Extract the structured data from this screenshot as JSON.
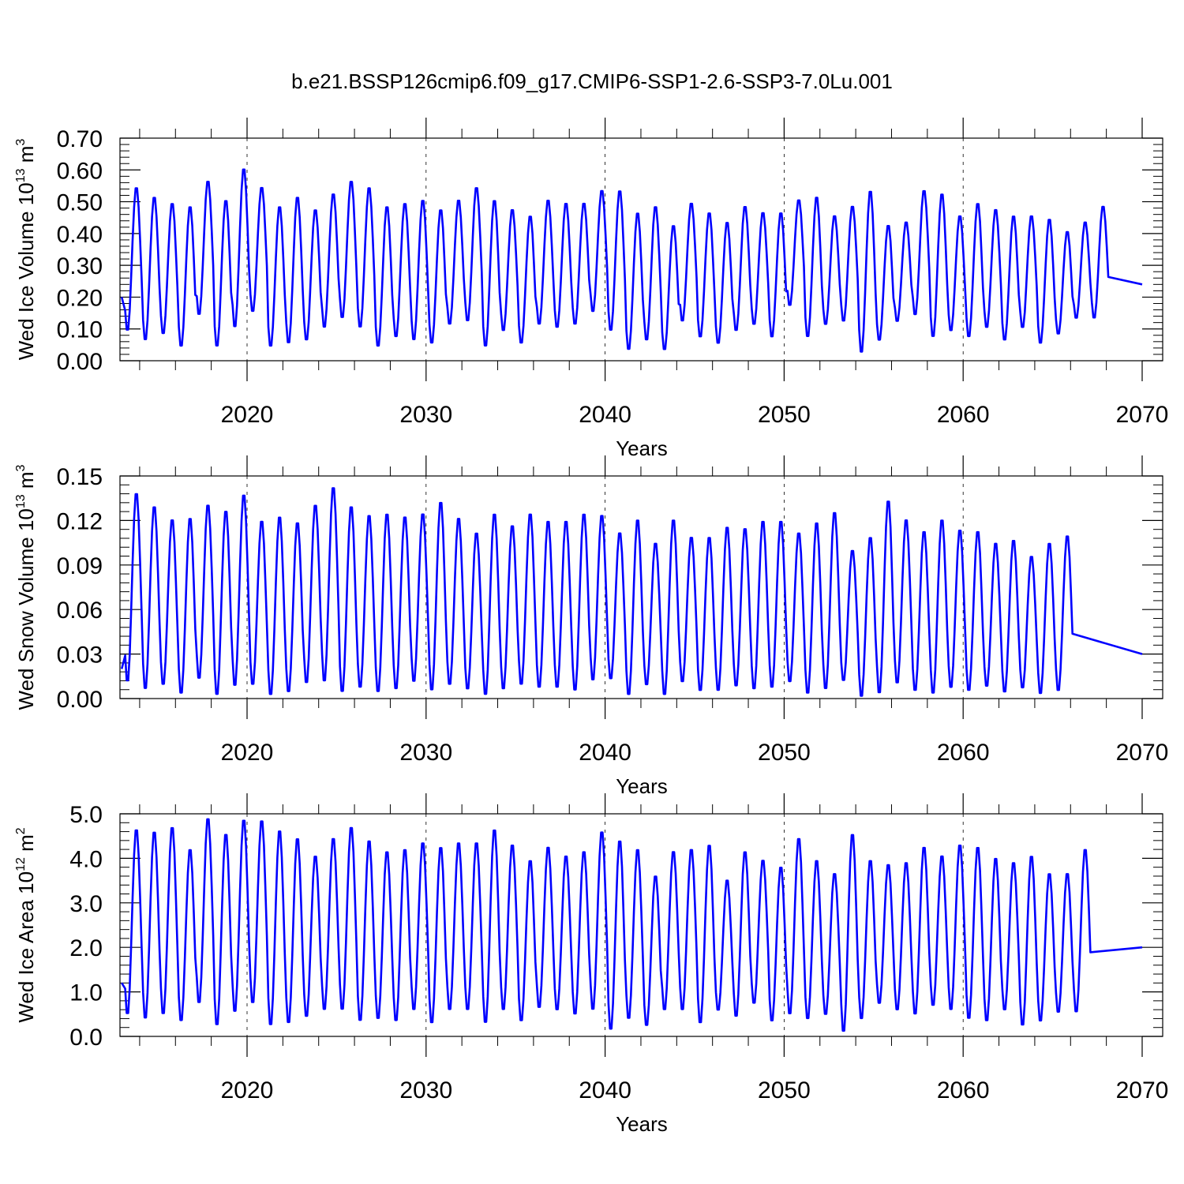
{
  "title": "b.e21.BSSP126cmip6.f09_g17.CMIP6-SSP1-2.6-SSP3-7.0Lu.001",
  "chart_data": [
    {
      "type": "line",
      "ylabel": {
        "base": "Wed Ice Volume 10",
        "exp": "13",
        "unit": " m",
        "unit_exp": "3"
      },
      "xlabel": "Years",
      "xlim": [
        2013,
        2070
      ],
      "ylim": [
        0.0,
        0.7
      ],
      "yticks": [
        "0.00",
        "0.10",
        "0.20",
        "0.30",
        "0.40",
        "0.50",
        "0.60",
        "0.70"
      ],
      "ytick_values": [
        0,
        0.1,
        0.2,
        0.3,
        0.4,
        0.5,
        0.6,
        0.7
      ],
      "xticks": [
        "2020",
        "2030",
        "2040",
        "2050",
        "2060",
        "2070"
      ],
      "xtick_values": [
        2020,
        2030,
        2040,
        2050,
        2060,
        2070
      ],
      "grid": "dashed vertical at decades",
      "line_color": "#0000ff",
      "start_value": 0.2,
      "end_value": 0.24,
      "annual_maxima": [
        0.55,
        0.52,
        0.5,
        0.49,
        0.57,
        0.51,
        0.61,
        0.55,
        0.49,
        0.52,
        0.48,
        0.53,
        0.57,
        0.55,
        0.49,
        0.5,
        0.51,
        0.48,
        0.51,
        0.55,
        0.51,
        0.48,
        0.46,
        0.51,
        0.5,
        0.5,
        0.54,
        0.54,
        0.47,
        0.49,
        0.43,
        0.5,
        0.47,
        0.44,
        0.49,
        0.47,
        0.47,
        0.51,
        0.52,
        0.46,
        0.49,
        0.54,
        0.43,
        0.44,
        0.54,
        0.53,
        0.46,
        0.5,
        0.48,
        0.46,
        0.46,
        0.45,
        0.41,
        0.44,
        0.49
      ],
      "annual_minima": [
        0.09,
        0.06,
        0.08,
        0.04,
        0.14,
        0.04,
        0.1,
        0.15,
        0.04,
        0.05,
        0.06,
        0.1,
        0.13,
        0.1,
        0.04,
        0.07,
        0.06,
        0.05,
        0.11,
        0.12,
        0.04,
        0.09,
        0.05,
        0.11,
        0.1,
        0.11,
        0.15,
        0.09,
        0.03,
        0.06,
        0.03,
        0.12,
        0.07,
        0.05,
        0.09,
        0.11,
        0.07,
        0.17,
        0.07,
        0.11,
        0.12,
        0.02,
        0.06,
        0.12,
        0.14,
        0.07,
        0.09,
        0.07,
        0.1,
        0.06,
        0.1,
        0.05,
        0.08,
        0.13
      ]
    },
    {
      "type": "line",
      "ylabel": {
        "base": "Wed Snow Volume 10",
        "exp": "13",
        "unit": " m",
        "unit_exp": "3"
      },
      "xlabel": "Years",
      "xlim": [
        2013,
        2070
      ],
      "ylim": [
        0.0,
        0.15
      ],
      "yticks": [
        "0.00",
        "0.03",
        "0.06",
        "0.09",
        "0.12",
        "0.15"
      ],
      "ytick_values": [
        0,
        0.03,
        0.06,
        0.09,
        0.12,
        0.15
      ],
      "xticks": [
        "2020",
        "2030",
        "2040",
        "2050",
        "2060",
        "2070"
      ],
      "xtick_values": [
        2020,
        2030,
        2040,
        2050,
        2060,
        2070
      ],
      "grid": "dashed vertical at decades",
      "line_color": "#0000ff",
      "start_value": 0.02,
      "end_value": 0.03,
      "annual_maxima": [
        0.14,
        0.131,
        0.122,
        0.123,
        0.132,
        0.128,
        0.139,
        0.121,
        0.124,
        0.12,
        0.132,
        0.144,
        0.131,
        0.125,
        0.126,
        0.124,
        0.126,
        0.134,
        0.123,
        0.113,
        0.126,
        0.118,
        0.126,
        0.121,
        0.121,
        0.126,
        0.125,
        0.113,
        0.122,
        0.106,
        0.122,
        0.11,
        0.11,
        0.117,
        0.116,
        0.121,
        0.121,
        0.113,
        0.12,
        0.127,
        0.101,
        0.11,
        0.135,
        0.122,
        0.114,
        0.122,
        0.115,
        0.114,
        0.106,
        0.108,
        0.097,
        0.106,
        0.111
      ],
      "annual_minima": [
        0.01,
        0.005,
        0.008,
        0.002,
        0.012,
        0.001,
        0.007,
        0.008,
        0.001,
        0.003,
        0.009,
        0.01,
        0.003,
        0.006,
        0.003,
        0.005,
        0.01,
        0.004,
        0.008,
        0.005,
        0.001,
        0.005,
        0.008,
        0.006,
        0.006,
        0.004,
        0.011,
        0.012,
        0.001,
        0.008,
        0.001,
        0.01,
        0.004,
        0.004,
        0.007,
        0.005,
        0.006,
        0.01,
        0.002,
        0.005,
        0.011,
        0.0,
        0.002,
        0.009,
        0.004,
        0.002,
        0.006,
        0.004,
        0.007,
        0.003,
        0.006,
        0.002,
        0.004
      ]
    },
    {
      "type": "line",
      "ylabel": {
        "base": "Wed Ice Area 10",
        "exp": "12",
        "unit": " m",
        "unit_exp": "2"
      },
      "xlabel": "Years",
      "xlim": [
        2013,
        2070
      ],
      "ylim": [
        0.0,
        5.0
      ],
      "yticks": [
        "0.0",
        "1.0",
        "2.0",
        "3.0",
        "4.0",
        "5.0"
      ],
      "ytick_values": [
        0,
        1,
        2,
        3,
        4,
        5
      ],
      "xticks": [
        "2020",
        "2030",
        "2040",
        "2050",
        "2060",
        "2070"
      ],
      "xtick_values": [
        2020,
        2030,
        2040,
        2050,
        2060,
        2070
      ],
      "grid": "dashed vertical at decades",
      "line_color": "#0000ff",
      "start_value": 1.2,
      "end_value": 2.0,
      "annual_maxima": [
        4.7,
        4.65,
        4.75,
        4.25,
        4.95,
        4.6,
        4.92,
        4.9,
        4.68,
        4.5,
        4.1,
        4.5,
        4.75,
        4.45,
        4.2,
        4.25,
        4.4,
        4.3,
        4.4,
        4.4,
        4.7,
        4.35,
        4.0,
        4.3,
        4.1,
        4.2,
        4.65,
        4.45,
        4.25,
        3.65,
        4.2,
        4.25,
        4.35,
        3.55,
        4.2,
        4.0,
        3.85,
        4.5,
        4.0,
        3.7,
        4.6,
        4.0,
        3.9,
        3.95,
        4.3,
        4.1,
        4.35,
        4.3,
        4.05,
        3.95,
        4.1,
        3.7,
        3.7,
        4.25
      ],
      "annual_minima": [
        0.45,
        0.35,
        0.45,
        0.3,
        0.7,
        0.2,
        0.5,
        0.7,
        0.2,
        0.25,
        0.4,
        0.55,
        0.55,
        0.3,
        0.35,
        0.3,
        0.55,
        0.25,
        0.55,
        0.55,
        0.25,
        0.55,
        0.3,
        0.6,
        0.55,
        0.45,
        0.55,
        0.1,
        0.35,
        0.2,
        0.55,
        0.55,
        0.25,
        0.55,
        0.4,
        0.7,
        0.3,
        0.45,
        0.35,
        0.45,
        0.05,
        0.35,
        0.7,
        0.55,
        0.45,
        0.65,
        0.55,
        0.35,
        0.3,
        0.55,
        0.2,
        0.3,
        0.5
      ]
    }
  ]
}
